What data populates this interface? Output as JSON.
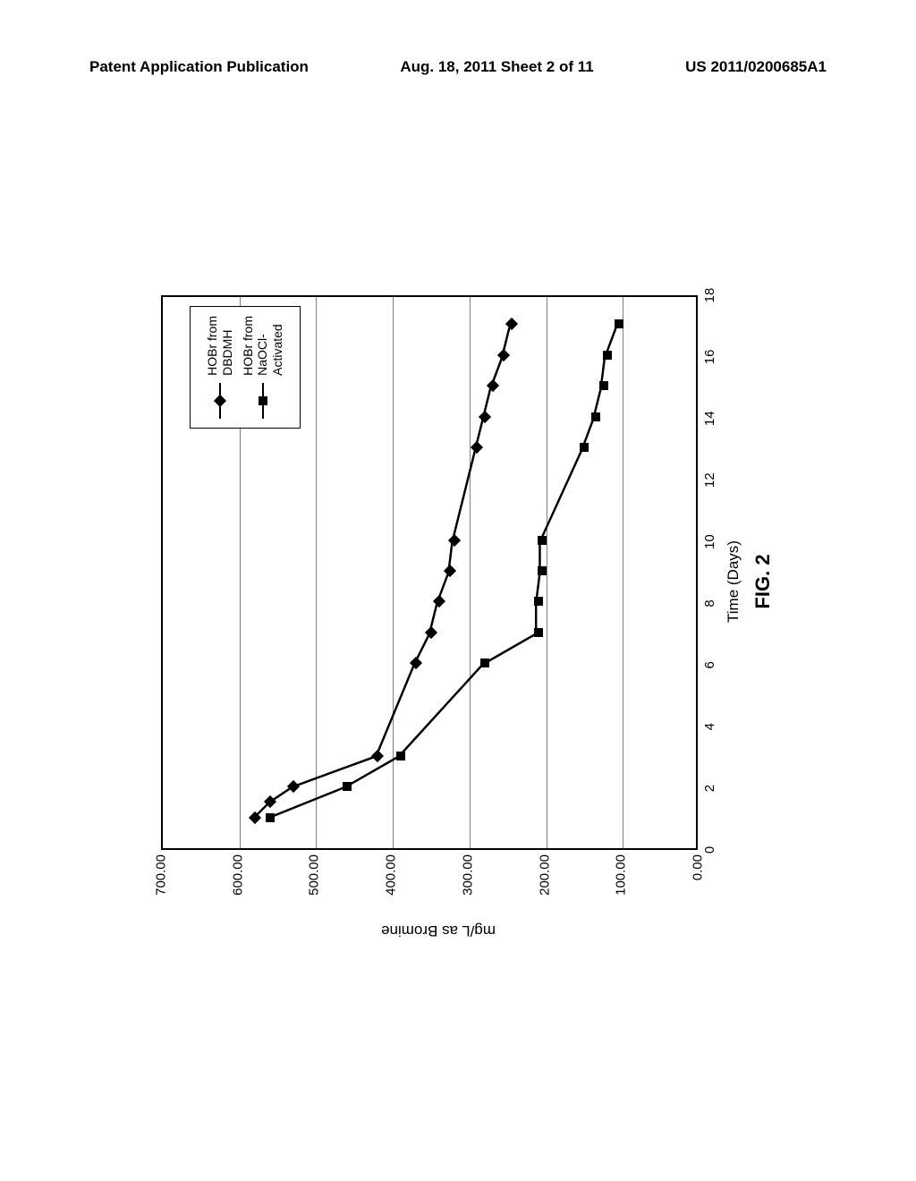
{
  "header": {
    "left": "Patent Application Publication",
    "center": "Aug. 18, 2011  Sheet 2 of 11",
    "right": "US 2011/0200685A1"
  },
  "chart": {
    "type": "line",
    "x_axis": {
      "label": "Time (Days)",
      "min": 0,
      "max": 18,
      "ticks": [
        {
          "value": 0,
          "label": "0"
        },
        {
          "value": 2,
          "label": "2"
        },
        {
          "value": 4,
          "label": "4"
        },
        {
          "value": 6,
          "label": "6"
        },
        {
          "value": 8,
          "label": "8"
        },
        {
          "value": 10,
          "label": "10"
        },
        {
          "value": 12,
          "label": "12"
        },
        {
          "value": 14,
          "label": "14"
        },
        {
          "value": 16,
          "label": "16"
        },
        {
          "value": 18,
          "label": "18"
        }
      ]
    },
    "y_axis": {
      "label": "mg/L as Bromine",
      "min": 0,
      "max": 700,
      "ticks": [
        {
          "value": 0,
          "label": "0.00"
        },
        {
          "value": 100,
          "label": "100.00"
        },
        {
          "value": 200,
          "label": "200.00"
        },
        {
          "value": 300,
          "label": "300.00"
        },
        {
          "value": 400,
          "label": "400.00"
        },
        {
          "value": 500,
          "label": "500.00"
        },
        {
          "value": 600,
          "label": "600.00"
        },
        {
          "value": 700,
          "label": "700.00"
        }
      ]
    },
    "series": [
      {
        "name": "HOBr from DBDMH",
        "marker": "diamond",
        "color": "#000000",
        "line_width": 2.5,
        "data": [
          {
            "x": 1,
            "y": 580
          },
          {
            "x": 1.5,
            "y": 560
          },
          {
            "x": 2,
            "y": 530
          },
          {
            "x": 3,
            "y": 420
          },
          {
            "x": 6,
            "y": 370
          },
          {
            "x": 7,
            "y": 350
          },
          {
            "x": 8,
            "y": 340
          },
          {
            "x": 9,
            "y": 325
          },
          {
            "x": 10,
            "y": 320
          },
          {
            "x": 13,
            "y": 290
          },
          {
            "x": 14,
            "y": 280
          },
          {
            "x": 15,
            "y": 270
          },
          {
            "x": 16,
            "y": 255
          },
          {
            "x": 17,
            "y": 245
          }
        ]
      },
      {
        "name": "HOBr from NaOCl-Activated",
        "marker": "square",
        "color": "#000000",
        "line_width": 2.5,
        "data": [
          {
            "x": 1,
            "y": 560
          },
          {
            "x": 2,
            "y": 460
          },
          {
            "x": 3,
            "y": 390
          },
          {
            "x": 6,
            "y": 280
          },
          {
            "x": 7,
            "y": 210
          },
          {
            "x": 8,
            "y": 210
          },
          {
            "x": 9,
            "y": 205
          },
          {
            "x": 10,
            "y": 205
          },
          {
            "x": 13,
            "y": 150
          },
          {
            "x": 14,
            "y": 135
          },
          {
            "x": 15,
            "y": 125
          },
          {
            "x": 16,
            "y": 120
          },
          {
            "x": 17,
            "y": 105
          }
        ]
      }
    ],
    "grid_color": "#808080",
    "background_color": "#ffffff",
    "border_color": "#000000",
    "figure_label": "FIG. 2",
    "legend": {
      "position": "top-right",
      "border_color": "#000000",
      "background_color": "#ffffff"
    }
  }
}
